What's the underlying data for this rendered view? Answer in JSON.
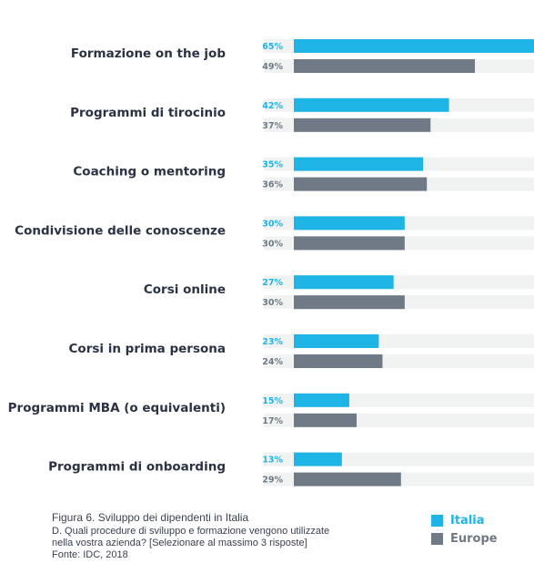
{
  "colors": {
    "italia": "#1eb5e6",
    "europe": "#6f7a86",
    "track": "#f1f2f2"
  },
  "chart_data": {
    "type": "bar",
    "orientation": "horizontal",
    "xlim": [
      0,
      65
    ],
    "categories": [
      "Formazione on the job",
      "Programmi di tirocinio",
      "Coaching o mentoring",
      "Condivisione delle conoscenze",
      "Corsi online",
      "Corsi in prima persona",
      "Programmi MBA (o equivalenti)",
      "Programmi di onboarding"
    ],
    "series": [
      {
        "name": "Italia",
        "values": [
          65,
          42,
          35,
          30,
          27,
          23,
          15,
          13
        ]
      },
      {
        "name": "Europe",
        "values": [
          49,
          37,
          36,
          30,
          30,
          24,
          17,
          29
        ]
      }
    ],
    "value_suffix": "%",
    "legend_position": "bottom-right"
  },
  "caption": {
    "title": "Figura 6. Sviluppo dei dipendenti in Italia",
    "question_line1": "D. Quali procedure di sviluppo e formazione vengono utilizzate",
    "question_line2": "nella vostra azienda? [Selezionare al massimo 3 risposte]",
    "source": "Fonte: IDC, 2018"
  },
  "legend": [
    {
      "label": "Italia",
      "color": "#1eb5e6"
    },
    {
      "label": "Europe",
      "color": "#6f7a86"
    }
  ]
}
